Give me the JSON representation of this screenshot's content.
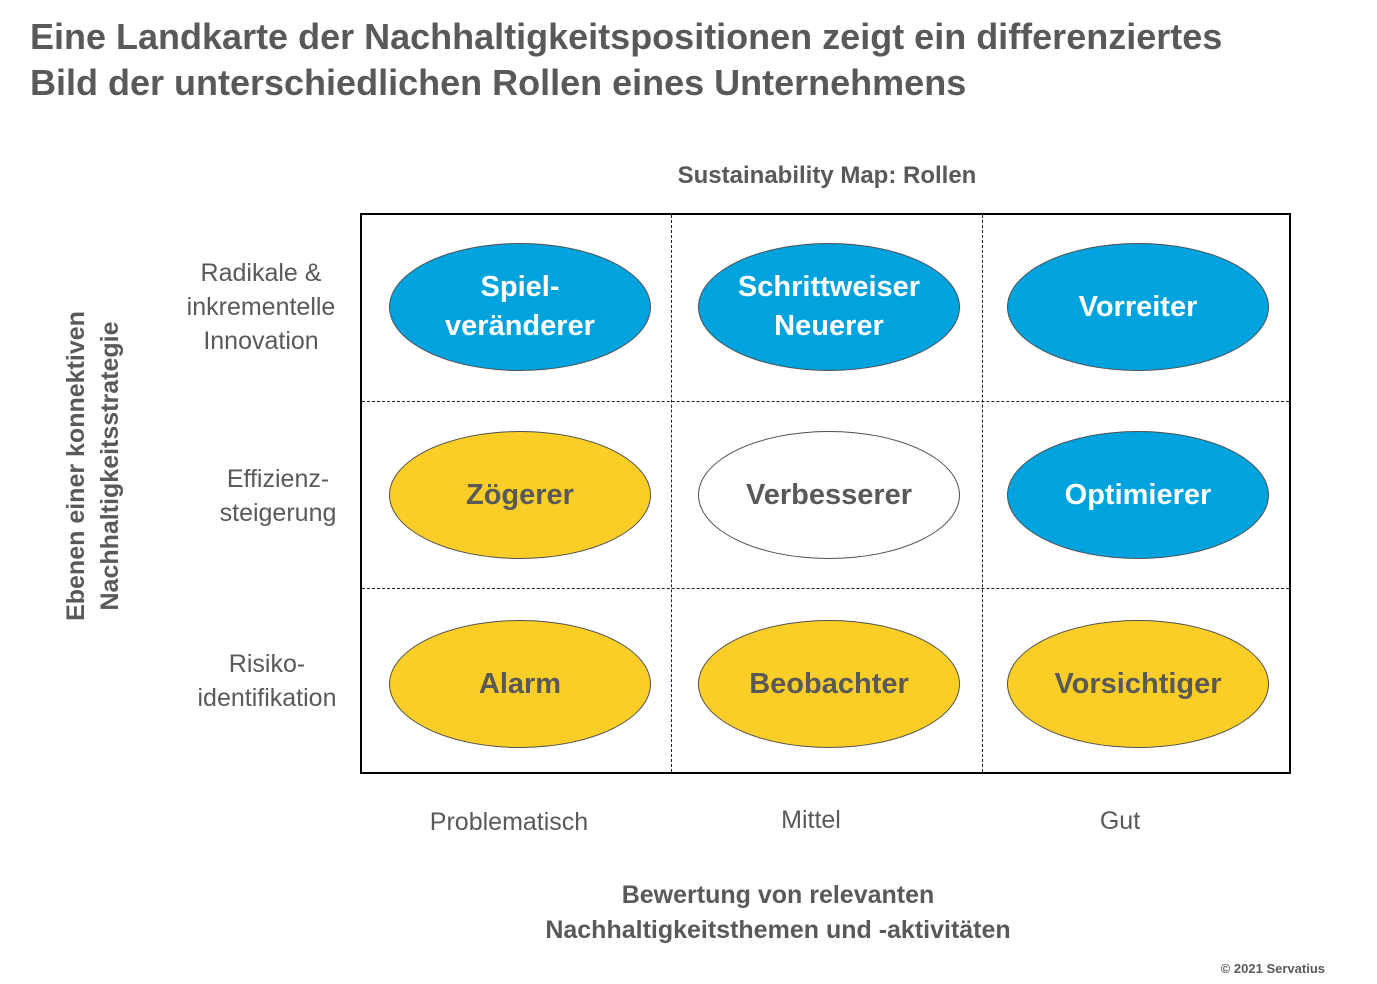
{
  "title": {
    "line1": "Eine Landkarte der Nachhaltigkeitspositionen zeigt ein differenziertes",
    "line2": "Bild der unterschiedlichen Rollen eines Unternehmens"
  },
  "map_title": "Sustainability Map: Rollen",
  "y_axis_title": "Ebenen einer konnektiven\nNachhaltigkeitsstrategie",
  "x_axis_title": "Bewertung von relevanten\nNachhaltigkeitsthemen und -aktivitäten",
  "row_labels": [
    "Radikale &\ninkrementelle\nInnovation",
    "Effizienz-\nsteigerung",
    "Risiko-\nidentifikation"
  ],
  "column_labels": [
    "Problematisch",
    "Mittel",
    "Gut"
  ],
  "roles": [
    [
      {
        "label": "Spiel-\nveränderer",
        "color": "#00a3de"
      },
      {
        "label": "Schrittweiser\nNeuerer",
        "color": "#00a3de"
      },
      {
        "label": "Vorreiter",
        "color": "#00a3de"
      }
    ],
    [
      {
        "label": "Zögerer",
        "color": "#fbce27"
      },
      {
        "label": "Verbesserer",
        "color": "#ffffff"
      },
      {
        "label": "Optimierer",
        "color": "#00a3de"
      }
    ],
    [
      {
        "label": "Alarm",
        "color": "#fbce27"
      },
      {
        "label": "Beobachter",
        "color": "#fbce27"
      },
      {
        "label": "Vorsichtiger",
        "color": "#fbce27"
      }
    ]
  ],
  "copyright": "© 2021 Servatius"
}
